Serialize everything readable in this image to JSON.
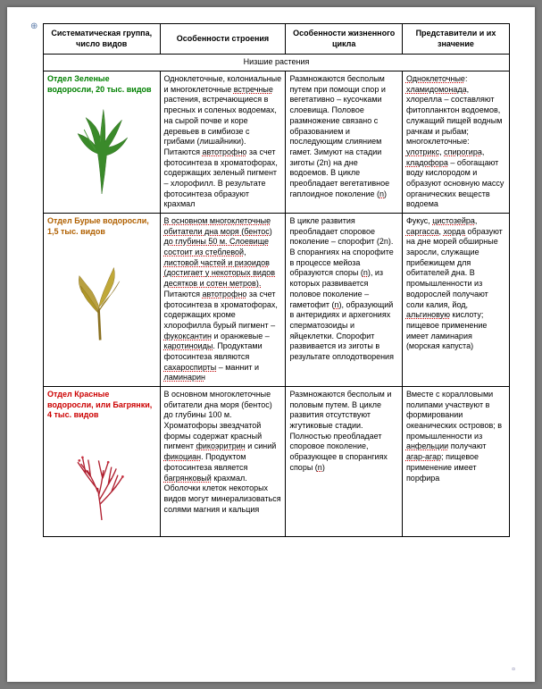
{
  "anchor": "⊕",
  "headers": {
    "c1": "Систематическая группа, число видов",
    "c2": "Особенности строения",
    "c3": "Особенности жизненного цикла",
    "c4": "Представители и их значение"
  },
  "section_title": "Низшие растения",
  "rows": [
    {
      "group": "Отдел Зеленые водоросли, 20 тыс. видов",
      "group_color": "green-title",
      "structure": "Одноклеточные, колониальные и многоклеточные <span class=\"u\">встречные</span> растения, встречающиеся в пресных и соленых водоемах, на сырой почве и коре деревьев в симбиозе с грибами (лишайники). Питаются <span class=\"u\">автотрофно</span> за счет фотосинтеза в хроматофорах, содержащих зеленый пигмент – хлорофилл. В результате фотосинтеза образуют крахмал",
      "lifecycle": "Размножаются бесполым путем при помощи спор и вегетативно – кусочками слоевища. Половое размножение связано с образованием и последующим слиянием гамет. Зимуют на стадии зиготы (2n) на дне водоемов. В цикле преобладает вегетативное гаплоидное поколение (<span class=\"u\">n</span>)",
      "reps": "<span class=\"u\">Одноклеточные</span>: <span class=\"u\">хламидомонада</span>, хлорелла – составляют фитопланктон водоемов, служащий пищей водным рачкам и рыбам; многоклеточные: <span class=\"u\">улотрикс</span>, <span class=\"u\">спирогира</span>, <span class=\"u\">кладофора</span> – обогащают воду кислородом и образуют основную массу органических веществ водоема",
      "illus": "green"
    },
    {
      "group": "Отдел Бурые водоросли, 1,5 тыс. видов",
      "group_color": "brown-title",
      "structure": "<span class=\"u\">В основном многоклеточные обитатели дна моря (бентос) до глубины 50 м. Слоевище состоит из стеблевой, листовой частей и ризоидов (достигает у некоторых видов десятков и сотен метров).</span> Питаются <span class=\"u\">автотрофно</span> за счет фотосинтеза в хроматофорах, содержащих кроме хлорофилла бурый пигмент – <span class=\"u\">фукоксантин</span> и оранжевые – <span class=\"u\">каротиноиды</span>. Продуктами фотосинтеза являются <span class=\"u\">сахароспирты</span> – маннит и <span class=\"u\">ламинарин</span>",
      "lifecycle": "В цикле развития преобладает споровое поколение – спорофит (2n). В спорангиях на спорофите в процессе мейоза образуются споры (<span class=\"u\">n</span>), из которых развивается половое поколение – гаметофит (<span class=\"u\">n</span>), образующий в антеридиях и архегониях сперматозоиды и яйцеклетки. Спорофит развивается из зиготы в результате оплодотворения",
      "reps": "Фукус, <span class=\"u\">цистозейра</span>, <span class=\"u\">саргасса</span>, <span class=\"u\">хорда</span> образуют на дне морей обширные заросли, служащие прибежищем для обитателей дна. В промышленности из водорослей получают соли калия, йод, <span class=\"u\">альгиновую</span> кислоту; пищевое применение имеет ламинария (морская капуста)",
      "illus": "brown"
    },
    {
      "group": "Отдел Красные водоросли, или Багрянки, 4 тыс. видов",
      "group_color": "red-title",
      "structure": "В основном многоклеточные обитатели дна моря (бентос) до глубины 100 м. Хроматофоры звездчатой формы содержат красный пигмент <span class=\"u\">фикоэритрин</span> и синий <span class=\"u\">фикоциан</span>. Продуктом фотосинтеза является <span class=\"u\">багрянковый</span> крахмал. Оболочки клеток некоторых видов могут минерализоваться солями магния и кальция",
      "lifecycle": "Размножаются бесполым и половым путем. В цикле развития отсутствуют жгутиковые стадии. Полностью преобладает споровое поколение, образующее в спорангиях споры (<span class=\"u\">n</span>)",
      "reps": "Вместе с коралловыми полипами участвуют в формировании океанических островов; в промышленности из <span class=\"u\">анфельции</span> получают <span class=\"u\">агар-агар</span>; пищевое применение имеет порфира",
      "illus": "red"
    }
  ],
  "corner": "¤"
}
